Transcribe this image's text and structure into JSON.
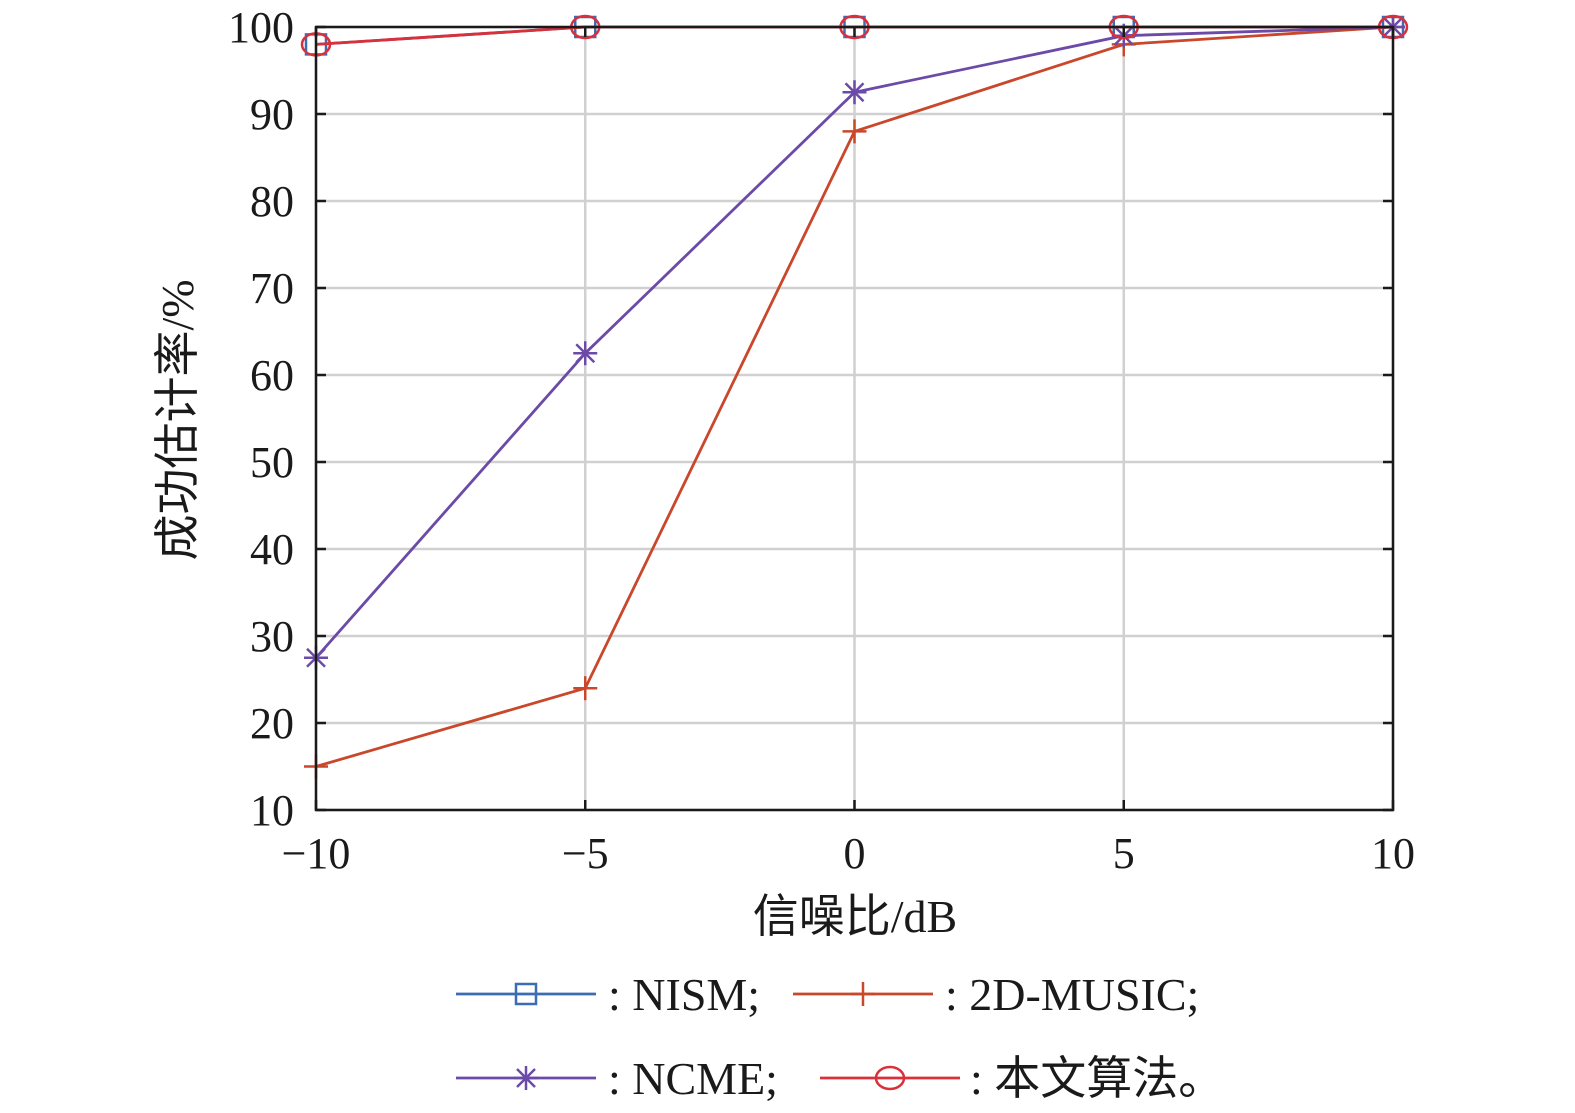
{
  "chart_data": {
    "type": "line",
    "title": "",
    "xlabel": "信噪比/dB",
    "ylabel": "成功估计率/%",
    "x": [
      -10,
      -5,
      0,
      5,
      10
    ],
    "xlim": [
      -10,
      10
    ],
    "ylim": [
      10,
      100
    ],
    "xticks": [
      -10,
      -5,
      0,
      5,
      10
    ],
    "xtick_labels": [
      "−10",
      "−5",
      "0",
      "5",
      "10"
    ],
    "yticks": [
      10,
      20,
      30,
      40,
      50,
      60,
      70,
      80,
      90,
      100
    ],
    "ytick_labels": [
      "10",
      "20",
      "30",
      "40",
      "50",
      "60",
      "70",
      "80",
      "90",
      "100"
    ],
    "grid": true,
    "legend_placement": "bottom",
    "series": [
      {
        "name": "NISM",
        "legend_label": ": NISM;",
        "color": "#3b6db3",
        "marker": "square",
        "values": [
          98,
          100,
          100,
          100,
          100
        ]
      },
      {
        "name": "2D-MUSIC",
        "legend_label": ": 2D-MUSIC;",
        "color": "#c9472b",
        "marker": "plus",
        "values": [
          15,
          24,
          88,
          98,
          100
        ]
      },
      {
        "name": "NCME",
        "legend_label": ": NCME;",
        "color": "#6b4aa8",
        "marker": "asterisk",
        "values": [
          27.5,
          62.5,
          92.5,
          99,
          100
        ]
      },
      {
        "name": "本文算法",
        "legend_label": ": 本文算法。",
        "color": "#d9303a",
        "marker": "circle",
        "values": [
          98,
          100,
          100,
          100,
          100
        ]
      }
    ]
  }
}
